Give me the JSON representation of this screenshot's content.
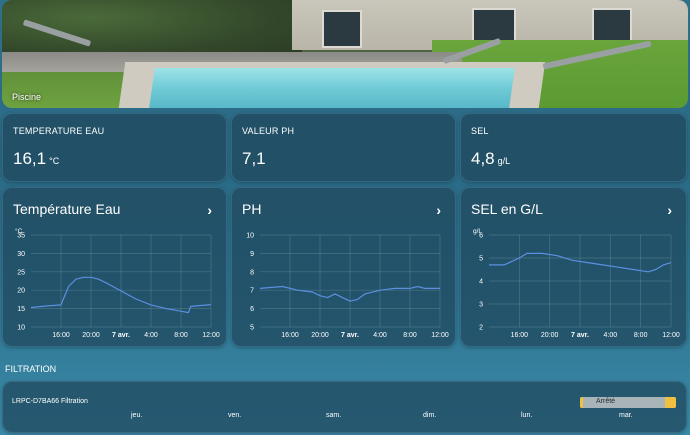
{
  "hero": {
    "label": "Piscine"
  },
  "sensors": [
    {
      "title": "TEMPERATURE EAU",
      "value": "16,1",
      "unit": "°C"
    },
    {
      "title": "VALEUR PH",
      "value": "7,1",
      "unit": ""
    },
    {
      "title": "SEL",
      "value": "4,8",
      "unit": "g/L"
    }
  ],
  "graphs": [
    {
      "title": "Température Eau",
      "chevron": "›"
    },
    {
      "title": "PH",
      "chevron": "›"
    },
    {
      "title": "SEL en G/L",
      "chevron": "›"
    }
  ],
  "filtration": {
    "section_title": "FILTRATION",
    "entity": "LRPC-D7BA66 Filtration",
    "state": "Arrêté",
    "days": [
      "jeu.",
      "ven.",
      "sam.",
      "dim.",
      "lun.",
      "mar."
    ]
  },
  "colors": {
    "line": "#5b8fe0",
    "active": "#f0c040",
    "inactive": "#a8b4b8"
  },
  "chart_data": [
    {
      "type": "line",
      "title": "Température Eau",
      "ylabel": "°C",
      "ylim": [
        10,
        35
      ],
      "yticks": [
        "35",
        "30",
        "25",
        "20",
        "15",
        "10"
      ],
      "xticks": [
        "16:00",
        "20:00",
        "7 avr.",
        "4:00",
        "8:00",
        "12:00"
      ],
      "series": [
        {
          "x": [
            12,
            14,
            16,
            17,
            18,
            19,
            20,
            21,
            22,
            24,
            26,
            28,
            30,
            32,
            33,
            33.3,
            36
          ],
          "values": [
            15.3,
            15.7,
            16.0,
            21.0,
            23.0,
            23.5,
            23.5,
            23.0,
            22.0,
            19.8,
            17.6,
            16.0,
            15.0,
            14.3,
            13.9,
            15.6,
            16.1
          ]
        }
      ]
    },
    {
      "type": "line",
      "title": "PH",
      "ylim": [
        5,
        10
      ],
      "yticks": [
        "10",
        "9",
        "8",
        "7",
        "6",
        "5"
      ],
      "xticks": [
        "16:00",
        "20:00",
        "7 avr.",
        "4:00",
        "8:00",
        "12:00"
      ],
      "series": [
        {
          "x": [
            12,
            15,
            17,
            19,
            20,
            21,
            22,
            23,
            24,
            25,
            26,
            28,
            30,
            32,
            33,
            34,
            36
          ],
          "values": [
            7.1,
            7.2,
            7.0,
            6.9,
            6.7,
            6.6,
            6.8,
            6.6,
            6.4,
            6.5,
            6.8,
            7.0,
            7.1,
            7.1,
            7.2,
            7.1,
            7.1
          ]
        }
      ]
    },
    {
      "type": "line",
      "title": "SEL en G/L",
      "ylabel": "g/L",
      "ylim": [
        2,
        6
      ],
      "yticks": [
        "6",
        "5",
        "4",
        "3",
        "2"
      ],
      "xticks": [
        "16:00",
        "20:00",
        "7 avr.",
        "4:00",
        "8:00",
        "12:00"
      ],
      "series": [
        {
          "x": [
            12,
            14,
            16,
            17,
            19,
            21,
            23,
            25,
            27,
            29,
            31,
            33,
            34,
            35,
            36
          ],
          "values": [
            4.7,
            4.7,
            5.0,
            5.2,
            5.2,
            5.1,
            4.9,
            4.8,
            4.7,
            4.6,
            4.5,
            4.4,
            4.5,
            4.7,
            4.8
          ]
        }
      ]
    }
  ]
}
